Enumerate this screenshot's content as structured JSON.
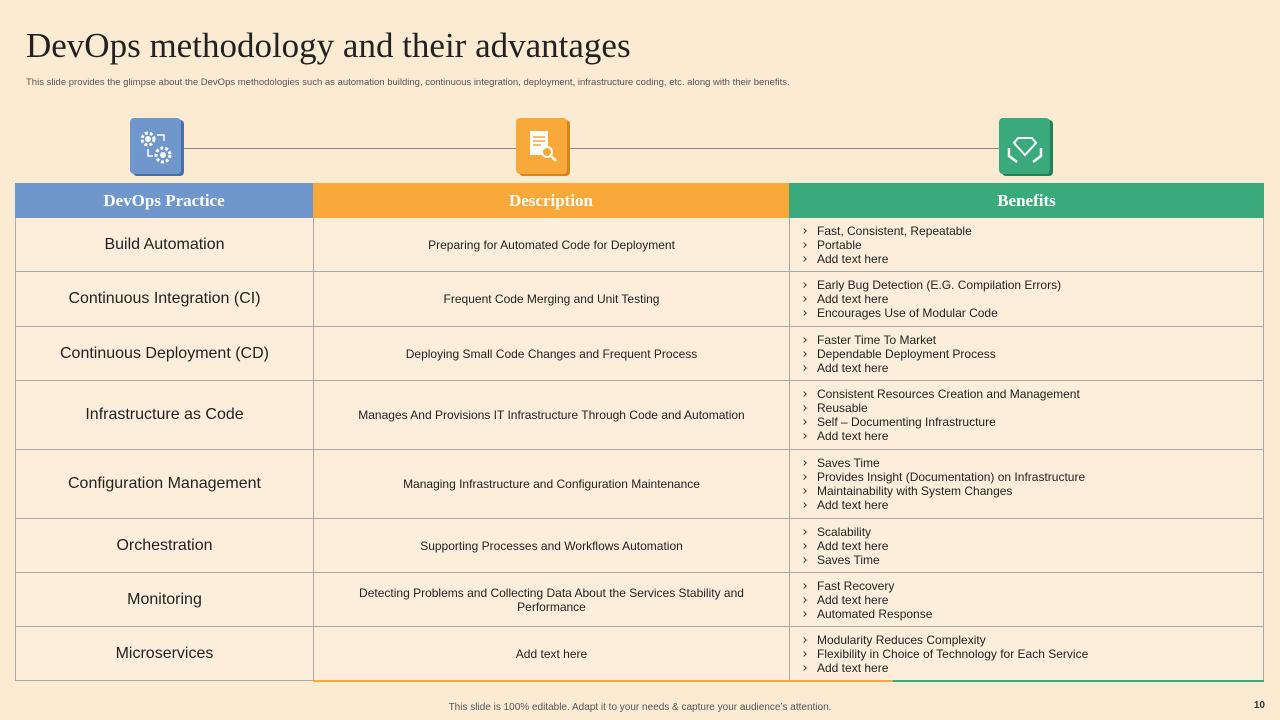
{
  "header": {
    "title": "DevOps methodology and their advantages",
    "subtitle": "This slide provides the glimpse about the DevOps methodologies such as automation building, continuous integration, deployment, infrastructure coding, etc. along with their benefits."
  },
  "table": {
    "columns": [
      "DevOps Practice",
      "Description",
      "Benefits"
    ],
    "rows": [
      {
        "practice": "Build Automation",
        "description": "Preparing for Automated Code for Deployment",
        "benefits": [
          "Fast, Consistent, Repeatable",
          "Portable",
          "Add text here"
        ]
      },
      {
        "practice": "Continuous Integration (CI)",
        "description": "Frequent Code Merging and Unit Testing",
        "benefits": [
          "Early Bug Detection (E.G. Compilation Errors)",
          "Add text here",
          "Encourages Use of Modular Code"
        ]
      },
      {
        "practice": "Continuous Deployment (CD)",
        "description": "Deploying Small Code Changes and Frequent Process",
        "benefits": [
          "Faster Time To Market",
          "Dependable Deployment Process",
          "Add text here"
        ]
      },
      {
        "practice": "Infrastructure  as Code",
        "description": "Manages And Provisions IT Infrastructure Through Code and Automation",
        "benefits": [
          "Consistent Resources Creation and Management",
          "Reusable",
          "Self – Documenting Infrastructure",
          "Add text here"
        ]
      },
      {
        "practice": "Configuration Management",
        "description": "Managing Infrastructure and Configuration Maintenance",
        "benefits": [
          "Saves Time",
          "Provides Insight (Documentation) on Infrastructure",
          "Maintainability with System Changes",
          "Add text here"
        ]
      },
      {
        "practice": "Orchestration",
        "description": "Supporting Processes and Workflows Automation",
        "benefits": [
          "Scalability",
          "Add text here",
          "Saves Time"
        ]
      },
      {
        "practice": "Monitoring",
        "description": "Detecting Problems and Collecting Data About the Services Stability and Performance",
        "benefits": [
          "Fast Recovery",
          "Add text here",
          "Automated Response"
        ]
      },
      {
        "practice": "Microservices",
        "description": "Add text here",
        "benefits": [
          "Modularity Reduces Complexity",
          "Flexibility in Choice of Technology for Each Service",
          "Add text here"
        ]
      }
    ]
  },
  "footer": {
    "note": "This slide is 100% editable.  Adapt it to your needs & capture your audience’s attention.",
    "page_number": "10"
  }
}
